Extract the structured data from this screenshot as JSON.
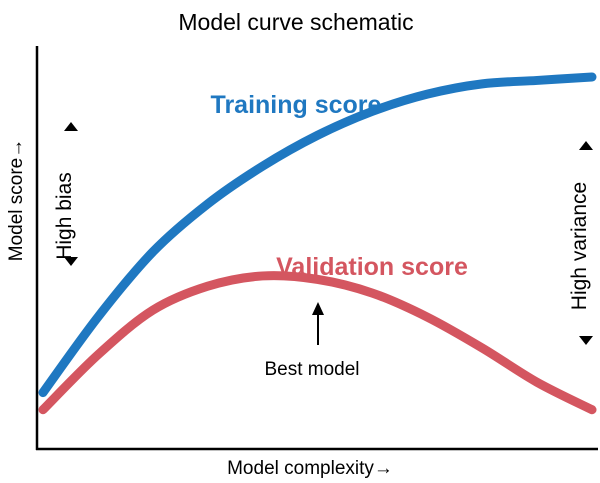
{
  "chart_data": {
    "type": "line",
    "title": "Model curve schematic",
    "xlabel": "Model complexity→",
    "ylabel": "Model score→",
    "xlim": [
      0,
      1
    ],
    "ylim": [
      0,
      1
    ],
    "grid": false,
    "legend": "none",
    "series": [
      {
        "name": "Training score",
        "color": "#1f78c1",
        "x": [
          0.0,
          0.1,
          0.2,
          0.3,
          0.4,
          0.5,
          0.6,
          0.7,
          0.8,
          0.9,
          1.0
        ],
        "y": [
          0.08,
          0.3,
          0.49,
          0.63,
          0.74,
          0.83,
          0.9,
          0.95,
          0.98,
          0.99,
          1.0
        ]
      },
      {
        "name": "Validation score",
        "color": "#d45660",
        "x": [
          0.0,
          0.1,
          0.2,
          0.3,
          0.4,
          0.5,
          0.6,
          0.7,
          0.8,
          0.9,
          1.0
        ],
        "y": [
          0.03,
          0.19,
          0.32,
          0.39,
          0.42,
          0.41,
          0.37,
          0.3,
          0.21,
          0.11,
          0.03
        ]
      }
    ],
    "annotations": [
      {
        "text": "Best model",
        "x": 0.48,
        "y": 0.42
      },
      {
        "text": "High bias"
      },
      {
        "text": "High variance"
      }
    ]
  },
  "colors": {
    "axis": "#000000",
    "training": "#1f78c1",
    "validation": "#d45660"
  }
}
